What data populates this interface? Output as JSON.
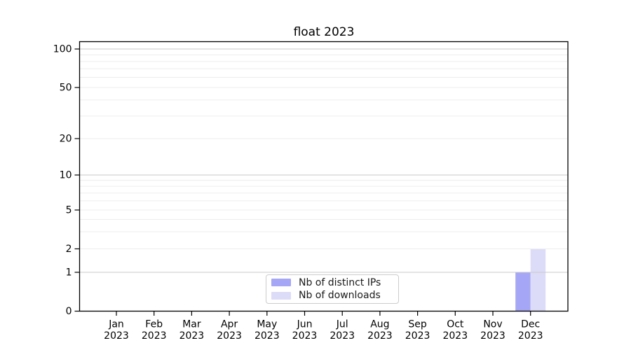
{
  "chart_data": {
    "type": "bar",
    "title": "float 2023",
    "x": {
      "months": [
        "Jan",
        "Feb",
        "Mar",
        "Apr",
        "May",
        "Jun",
        "Jul",
        "Aug",
        "Sep",
        "Oct",
        "Nov",
        "Dec"
      ],
      "year": "2023"
    },
    "series": [
      {
        "name": "Nb of distinct IPs",
        "color": "#a6a6f6",
        "values": [
          0,
          0,
          0,
          0,
          0,
          0,
          0,
          0,
          0,
          0,
          0,
          1
        ]
      },
      {
        "name": "Nb of downloads",
        "color": "#dcdcf8",
        "values": [
          0,
          0,
          0,
          0,
          0,
          0,
          0,
          0,
          0,
          0,
          0,
          2
        ]
      }
    ],
    "y_axis": {
      "scale": "log-like with zero baseline",
      "tick_values": [
        0,
        1,
        2,
        5,
        10,
        20,
        50,
        100
      ],
      "major_gridline_values": [
        1,
        10,
        100
      ],
      "minor_gridline_values": [
        2,
        3,
        4,
        6,
        7,
        8,
        9,
        5,
        20,
        30,
        40,
        60,
        70,
        80,
        90,
        50
      ],
      "ylim": [
        0,
        113
      ]
    },
    "legend": {
      "position": "lower center",
      "entries": [
        "Nb of distinct IPs",
        "Nb of downloads"
      ]
    },
    "grid": true,
    "colors": {
      "major_gridline": "#c8c8c8",
      "minor_gridline": "#ededed",
      "axis": "#000000",
      "bar_distinct_ips": "#a6a6f6",
      "bar_downloads": "#dcdcf8"
    }
  }
}
